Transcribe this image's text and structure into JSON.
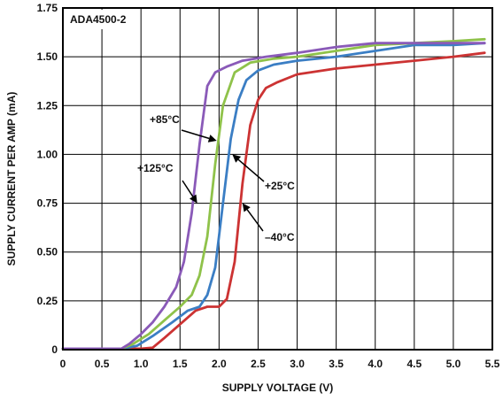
{
  "chart_data": {
    "type": "line",
    "title": "ADA4500-2",
    "xlabel": "SUPPLY VOLTAGE (V)",
    "ylabel": "SUPPLY CURRENT PER AMP (mA)",
    "xlim": [
      0,
      5.5
    ],
    "ylim": [
      0,
      1.75
    ],
    "xticks": [
      "0",
      "0.5",
      "1.0",
      "1.5",
      "2.0",
      "2.5",
      "3.0",
      "3.5",
      "4.0",
      "4.5",
      "5.0",
      "5.5"
    ],
    "yticks": [
      "0",
      "0.25",
      "0.50",
      "0.75",
      "1.00",
      "1.25",
      "1.50",
      "1.75"
    ],
    "grid": true,
    "series": [
      {
        "name": "–40°C",
        "color": "#cc3333",
        "x": [
          0.0,
          0.8,
          1.0,
          1.15,
          1.3,
          1.5,
          1.7,
          1.85,
          2.0,
          2.1,
          2.2,
          2.3,
          2.4,
          2.5,
          2.6,
          2.75,
          3.0,
          3.5,
          4.0,
          4.5,
          5.0,
          5.4
        ],
        "y": [
          0.005,
          0.005,
          0.005,
          0.01,
          0.06,
          0.13,
          0.2,
          0.22,
          0.22,
          0.26,
          0.45,
          0.85,
          1.15,
          1.28,
          1.34,
          1.37,
          1.41,
          1.44,
          1.46,
          1.48,
          1.5,
          1.52
        ]
      },
      {
        "name": "+25°C",
        "color": "#3b7ec4",
        "x": [
          0.0,
          0.75,
          0.95,
          1.15,
          1.4,
          1.6,
          1.75,
          1.85,
          1.95,
          2.05,
          2.15,
          2.25,
          2.35,
          2.5,
          2.7,
          3.0,
          3.5,
          4.0,
          4.5,
          5.0,
          5.4
        ],
        "y": [
          0.005,
          0.005,
          0.02,
          0.07,
          0.14,
          0.2,
          0.22,
          0.28,
          0.42,
          0.75,
          1.08,
          1.28,
          1.38,
          1.43,
          1.46,
          1.48,
          1.5,
          1.53,
          1.56,
          1.56,
          1.57
        ]
      },
      {
        "name": "+85°C",
        "color": "#8fc24a",
        "x": [
          0.0,
          0.75,
          0.9,
          1.1,
          1.3,
          1.5,
          1.65,
          1.75,
          1.85,
          1.95,
          2.05,
          2.2,
          2.4,
          2.7,
          3.0,
          3.5,
          4.0,
          4.5,
          5.0,
          5.4
        ],
        "y": [
          0.005,
          0.005,
          0.03,
          0.08,
          0.15,
          0.22,
          0.28,
          0.38,
          0.58,
          0.95,
          1.25,
          1.42,
          1.47,
          1.49,
          1.5,
          1.53,
          1.56,
          1.57,
          1.58,
          1.59
        ]
      },
      {
        "name": "+125°C",
        "color": "#8a5ab8",
        "x": [
          0.0,
          0.75,
          0.85,
          1.0,
          1.15,
          1.3,
          1.45,
          1.55,
          1.65,
          1.75,
          1.85,
          1.95,
          2.1,
          2.3,
          2.6,
          3.0,
          3.5,
          4.0,
          4.5,
          5.0,
          5.4
        ],
        "y": [
          0.005,
          0.005,
          0.03,
          0.08,
          0.14,
          0.22,
          0.32,
          0.45,
          0.7,
          1.05,
          1.35,
          1.42,
          1.45,
          1.48,
          1.5,
          1.52,
          1.55,
          1.57,
          1.57,
          1.57,
          1.57
        ]
      }
    ]
  }
}
